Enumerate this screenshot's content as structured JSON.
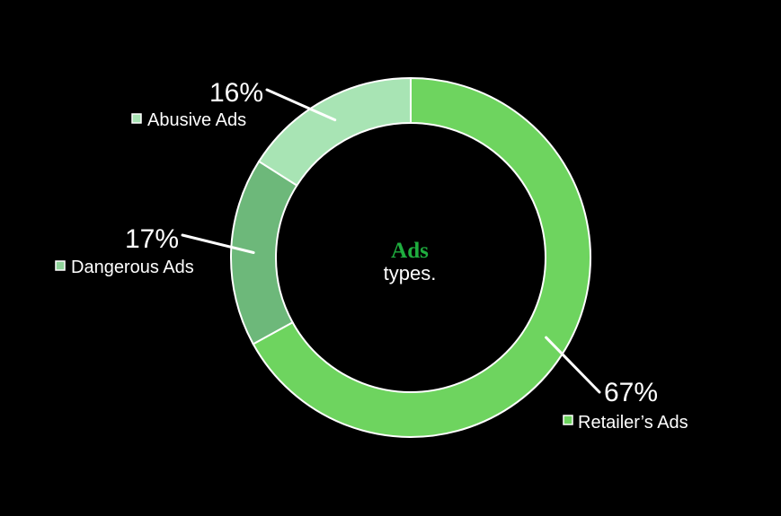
{
  "chart_data": {
    "type": "pie",
    "donut": true,
    "center_text": {
      "title": "Ads",
      "subtitle": "types."
    },
    "slices": [
      {
        "name": "Retailer’s Ads",
        "value": 67,
        "label": "67%",
        "color": "#6ed45f",
        "legend_color": "#6ed45f"
      },
      {
        "name": "Dangerous Ads",
        "value": 17,
        "label": "17%",
        "color": "#6db87a",
        "legend_color": "#8fd39a"
      },
      {
        "name": "Abusive Ads",
        "value": 16,
        "label": "16%",
        "color": "#a8e4b4",
        "legend_color": "#a8e4b4"
      }
    ],
    "start": "12 o'clock",
    "direction": "clockwise",
    "legend": "beside each slice label",
    "colors": {
      "background": "#000000",
      "center_title": "#1fae3f",
      "text": "#ffffff",
      "separator": "#ffffff"
    }
  }
}
